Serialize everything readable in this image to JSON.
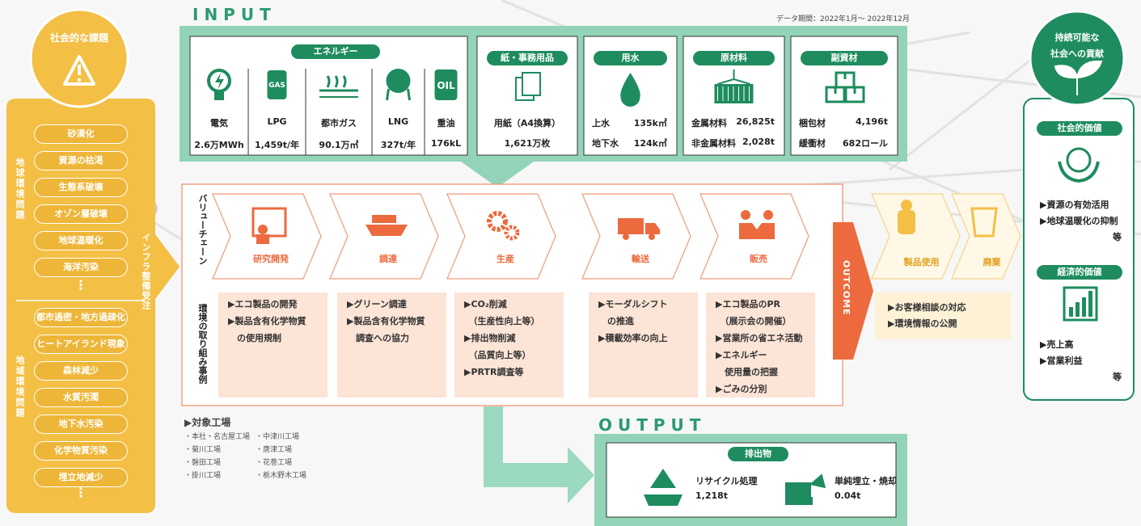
{
  "period": "データ期間：2022年1月～ 2022年12月",
  "social_issues": {
    "title": "社会的な課題",
    "infra_label": "インフラ整備受注",
    "groups": [
      {
        "label": "地球環境問題",
        "items": [
          "砂漠化",
          "資源の枯渇",
          "生態系破壊",
          "オゾン層破壊",
          "地球温暖化",
          "海洋汚染"
        ],
        "more": "⋮"
      },
      {
        "label": "地域環境問題",
        "items": [
          "都市過密・地方過疎化",
          "ヒートアイランド現象",
          "森林減少",
          "水質汚濁",
          "地下水汚染",
          "化学物質汚染",
          "埋立地減少"
        ],
        "more": "⋮"
      }
    ]
  },
  "input": {
    "title": "INPUT",
    "energy": {
      "title": "エネルギー",
      "items": [
        {
          "label": "電気",
          "value": "2.6万MWh"
        },
        {
          "label": "LPG",
          "value": "1,459t/年",
          "icon_text": "GAS"
        },
        {
          "label": "都市ガス",
          "value": "90.1万㎥"
        },
        {
          "label": "LNG",
          "value": "327t/年"
        },
        {
          "label": "重油",
          "value": "176kL",
          "icon_text": "OIL"
        }
      ]
    },
    "groups": [
      {
        "title": "紙・事務用品",
        "rows": [
          [
            "用紙（A4換算）"
          ],
          [
            "1,621万枚"
          ]
        ]
      },
      {
        "title": "用水",
        "rows": [
          [
            "上水",
            "135k㎥"
          ],
          [
            "地下水",
            "124k㎥"
          ]
        ]
      },
      {
        "title": "原材料",
        "rows": [
          [
            "金属材料",
            "26,825t"
          ],
          [
            "非金属材料",
            "2,028t"
          ]
        ]
      },
      {
        "title": "副資材",
        "rows": [
          [
            "梱包材",
            "4,196t"
          ],
          [
            "緩衝材",
            "682ロール"
          ]
        ]
      }
    ]
  },
  "value_chain": {
    "label": "バリューチェーン",
    "activities_label": "環境の取り組み事例",
    "stages": [
      {
        "name": "研究開発",
        "activities": [
          "▶エコ製品の開発",
          "▶製品含有化学物質",
          "　の使用規制"
        ]
      },
      {
        "name": "調達",
        "activities": [
          "▶グリーン調達",
          "▶製品含有化学物質",
          "　調査への協力"
        ]
      },
      {
        "name": "生産",
        "activities": [
          "▶CO₂削減",
          "　（生産性向上等）",
          "▶排出物削減",
          "　（品質向上等）",
          "▶PRTR調査等"
        ]
      },
      {
        "name": "輸送",
        "activities": [
          "▶モーダルシフト",
          "　の推進",
          "▶積載効率の向上"
        ]
      },
      {
        "name": "販売",
        "activities": [
          "▶エコ製品のPR",
          "　（展示会の開催）",
          "▶営業所の省エネ活動",
          "▶エネルギー",
          "　使用量の把握",
          "▶ごみの分別"
        ]
      }
    ]
  },
  "outcome": {
    "title": "OUTCOME",
    "stages": [
      "製品使用",
      "廃棄"
    ],
    "items": [
      "▶お客様相談の対応",
      "▶環境情報の公開"
    ]
  },
  "factories": {
    "title": "▶対象工場",
    "columns": [
      [
        "・本社・名古屋工場",
        "・菊川工場",
        "・磐田工場",
        "・掛川工場"
      ],
      [
        "・中津川工場",
        "・唐津工場",
        "・花巻工場",
        "・栃木野木工場"
      ]
    ]
  },
  "output": {
    "title": "OUTPUT",
    "header": "排出物",
    "items": [
      {
        "label": "リサイクル処理",
        "value": "1,218t"
      },
      {
        "label": "単純埋立・焼却",
        "value": "0.04t"
      }
    ]
  },
  "contribution": {
    "title": [
      "持続可能な",
      "社会への貢献"
    ],
    "values": [
      {
        "title": "社会的価値",
        "items": [
          "▶資源の有効活用",
          "▶地球温暖化の抑制"
        ],
        "note": "等"
      },
      {
        "title": "経済的価値",
        "items": [
          "▶売上高",
          "▶営業利益"
        ],
        "note": "等"
      }
    ]
  }
}
